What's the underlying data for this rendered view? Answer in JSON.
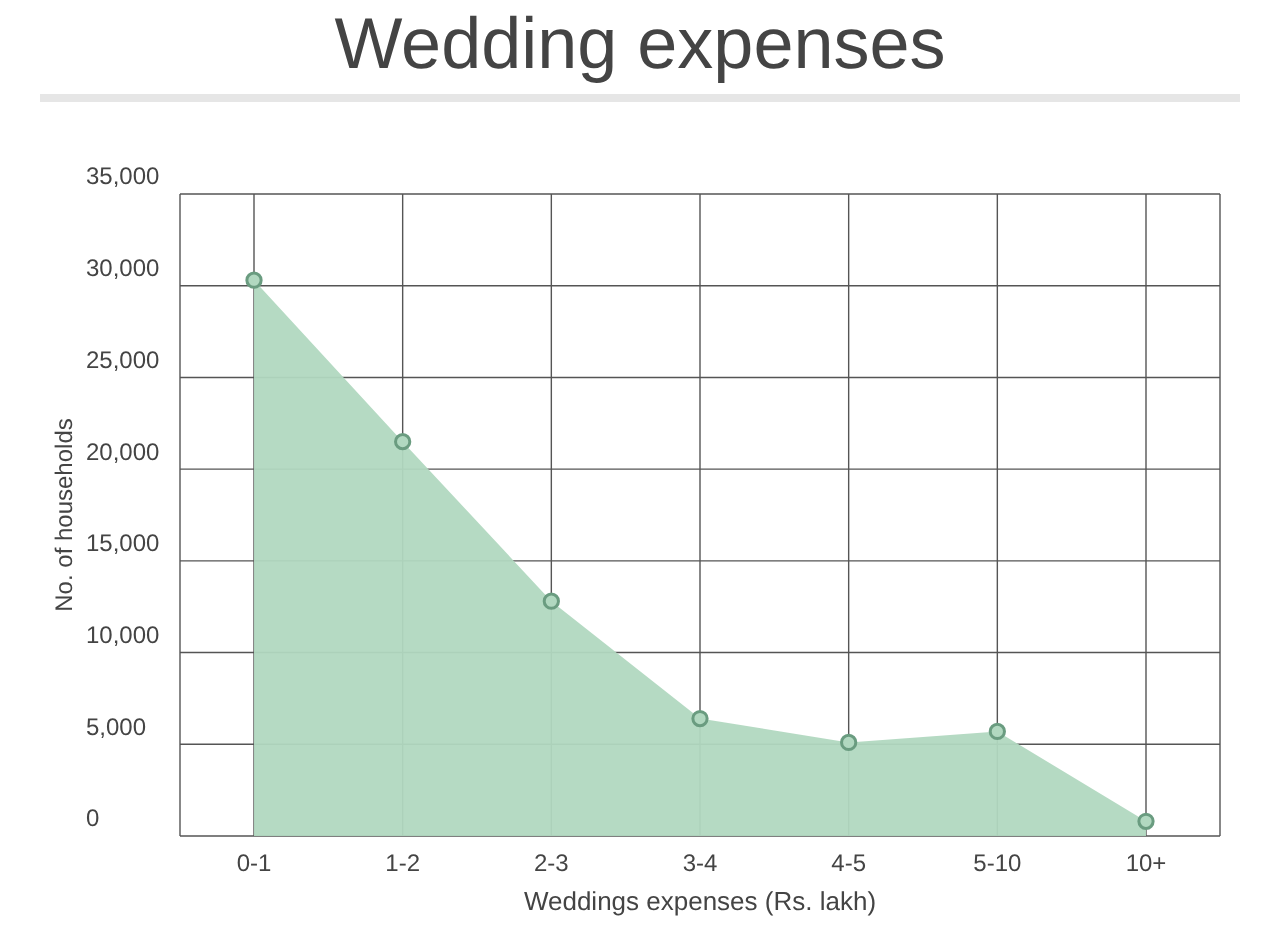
{
  "chart_data": {
    "type": "area",
    "title": "Wedding expenses",
    "xlabel": "Weddings expenses (Rs. lakh)",
    "ylabel": "No. of households",
    "categories": [
      "0-1",
      "1-2",
      "2-3",
      "3-4",
      "4-5",
      "5-10",
      "10+"
    ],
    "series": [
      {
        "color": "#b1d8c0",
        "values": [
          30300,
          21500,
          12800,
          6400,
          5100,
          5700,
          800
        ]
      }
    ],
    "ylim": [
      0,
      35000
    ],
    "yticks": [
      {
        "value": 0,
        "label": "0"
      },
      {
        "value": 5000,
        "label": "5,000"
      },
      {
        "value": 10000,
        "label": "10,000"
      },
      {
        "value": 15000,
        "label": "15,000"
      },
      {
        "value": 20000,
        "label": "20,000"
      },
      {
        "value": 25000,
        "label": "25,000"
      },
      {
        "value": 30000,
        "label": "30,000"
      },
      {
        "value": 35000,
        "label": "35,000"
      }
    ],
    "grid": true,
    "marker": "circle"
  }
}
